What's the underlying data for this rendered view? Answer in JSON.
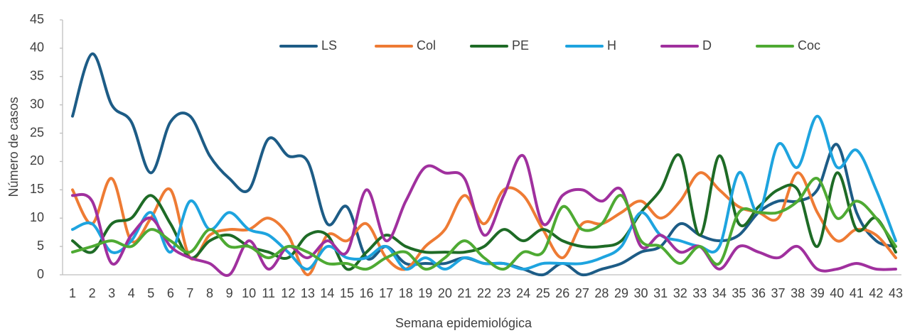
{
  "chart_data": {
    "type": "line",
    "x_label": "Semana epidemiológica",
    "y_label": "Número de casos",
    "categories": [
      "1",
      "2",
      "3",
      "4",
      "5",
      "6",
      "7",
      "8",
      "9",
      "10",
      "11",
      "12",
      "13",
      "14",
      "15",
      "16",
      "17",
      "18",
      "19",
      "20",
      "21",
      "22",
      "23",
      "24",
      "25",
      "26",
      "27",
      "28",
      "29",
      "30",
      "31",
      "32",
      "33",
      "34",
      "35",
      "36",
      "37",
      "38",
      "39",
      "40",
      "41",
      "42",
      "43"
    ],
    "ylim": [
      0,
      45
    ],
    "yticks": [
      0,
      5,
      10,
      15,
      20,
      25,
      30,
      35,
      40,
      45
    ],
    "grid": false,
    "legend": "top",
    "series": [
      {
        "name": "LS",
        "color": "#1d5c86",
        "values": [
          28,
          39,
          30,
          27,
          18,
          27,
          28,
          21,
          17,
          15,
          24,
          21,
          20,
          9,
          12,
          3,
          5,
          2,
          2,
          2,
          3,
          2,
          2,
          1,
          0,
          2,
          0,
          1,
          2,
          4,
          5,
          9,
          7,
          6,
          7,
          11,
          13,
          13,
          15,
          23,
          11,
          6,
          5
        ]
      },
      {
        "name": "Col",
        "color": "#ee7b34",
        "values": [
          15,
          9,
          17,
          6,
          10,
          15,
          3,
          7,
          8,
          8,
          10,
          7,
          0,
          7,
          6,
          9,
          3,
          1,
          5,
          8,
          14,
          9,
          15,
          14,
          8,
          3,
          9,
          9,
          11,
          13,
          10,
          13,
          18,
          15,
          12,
          11,
          10,
          18,
          11,
          6,
          8,
          7,
          3
        ]
      },
      {
        "name": "PE",
        "color": "#1e6b26",
        "values": [
          6,
          4,
          9,
          10,
          14,
          9,
          3,
          6,
          7,
          5,
          4,
          3,
          7,
          7,
          1,
          4,
          7,
          5,
          4,
          4,
          4,
          5,
          8,
          6,
          8,
          6,
          5,
          5,
          6,
          11,
          15,
          21,
          7,
          21,
          9,
          12,
          15,
          15,
          5,
          18,
          8,
          10,
          4
        ]
      },
      {
        "name": "H",
        "color": "#1ea4df",
        "values": [
          8,
          9,
          4,
          6,
          11,
          4,
          13,
          8,
          11,
          8,
          7,
          4,
          1,
          5,
          3,
          3,
          5,
          1,
          3,
          1,
          3,
          2,
          2,
          1,
          2,
          2,
          2,
          3,
          5,
          11,
          7,
          6,
          5,
          5,
          18,
          11,
          23,
          19,
          28,
          19,
          22,
          15,
          6
        ]
      },
      {
        "name": "D",
        "color": "#a0309e",
        "values": [
          14,
          13,
          2,
          7,
          10,
          5,
          3,
          2,
          0,
          6,
          1,
          5,
          3,
          6,
          4,
          15,
          6,
          13,
          19,
          18,
          17,
          7,
          14,
          21,
          9,
          14,
          15,
          13,
          15,
          5,
          7,
          4,
          5,
          1,
          5,
          4,
          3,
          5,
          1,
          1,
          2,
          1,
          1
        ]
      },
      {
        "name": "Coc",
        "color": "#4eaa33",
        "values": [
          4,
          5,
          6,
          5,
          8,
          6,
          4,
          8,
          5,
          5,
          3,
          5,
          4,
          2,
          2,
          1,
          3,
          4,
          1,
          3,
          6,
          3,
          1,
          4,
          4,
          12,
          8,
          9,
          14,
          6,
          5,
          2,
          5,
          2,
          11,
          11,
          11,
          13,
          17,
          10,
          13,
          10,
          5
        ]
      }
    ]
  }
}
